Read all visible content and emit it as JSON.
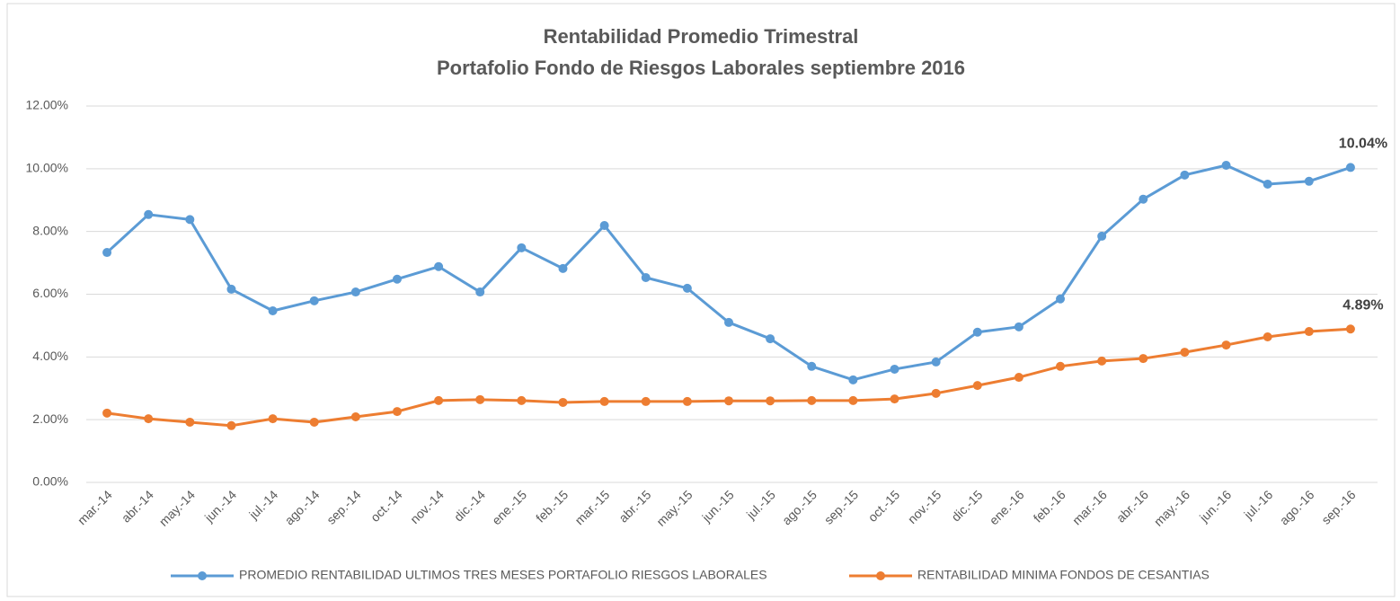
{
  "chart_data": {
    "type": "line",
    "title": "Rentabilidad Promedio Trimestral",
    "subtitle": "Portafolio Fondo de Riesgos Laborales  septiembre 2016",
    "categories": [
      "mar.-14",
      "abr.-14",
      "may.-14",
      "jun.-14",
      "jul.-14",
      "ago.-14",
      "sep.-14",
      "oct.-14",
      "nov.-14",
      "dic.-14",
      "ene.-15",
      "feb.-15",
      "mar.-15",
      "abr.-15",
      "may.-15",
      "jun.-15",
      "jul.-15",
      "ago.-15",
      "sep.-15",
      "oct.-15",
      "nov.-15",
      "dic.-15",
      "ene.-16",
      "feb.-16",
      "mar.-16",
      "abr.-16",
      "may.-16",
      "jun.-16",
      "jul.-16",
      "ago.-16",
      "sep.-16"
    ],
    "series": [
      {
        "name": "PROMEDIO RENTABILIDAD ULTIMOS TRES MESES PORTAFOLIO RIESGOS LABORALES",
        "color": "#5b9bd5",
        "values": [
          7.33,
          8.54,
          8.38,
          6.16,
          5.47,
          5.79,
          6.07,
          6.48,
          6.88,
          6.07,
          7.48,
          6.82,
          8.19,
          6.53,
          6.19,
          5.1,
          4.58,
          3.7,
          3.27,
          3.61,
          3.84,
          4.79,
          4.96,
          5.85,
          7.85,
          9.03,
          9.8,
          10.11,
          9.51,
          9.6,
          10.04
        ],
        "value_labels": [
          null,
          null,
          null,
          null,
          null,
          null,
          null,
          null,
          null,
          null,
          null,
          null,
          null,
          null,
          null,
          null,
          null,
          null,
          null,
          null,
          null,
          null,
          null,
          null,
          null,
          null,
          null,
          null,
          null,
          null,
          "10.04%"
        ]
      },
      {
        "name": "RENTABILIDAD MINIMA FONDOS DE CESANTIAS",
        "color": "#ed7d31",
        "values": [
          2.21,
          2.03,
          1.92,
          1.81,
          2.03,
          1.92,
          2.09,
          2.26,
          2.61,
          2.64,
          2.61,
          2.55,
          2.58,
          2.58,
          2.58,
          2.6,
          2.6,
          2.61,
          2.61,
          2.66,
          2.84,
          3.09,
          3.35,
          3.7,
          3.87,
          3.95,
          4.15,
          4.38,
          4.64,
          4.81,
          4.89
        ],
        "value_labels": [
          null,
          null,
          null,
          null,
          null,
          null,
          null,
          null,
          null,
          null,
          null,
          null,
          null,
          null,
          null,
          null,
          null,
          null,
          null,
          null,
          null,
          null,
          null,
          null,
          null,
          null,
          null,
          null,
          null,
          null,
          "4.89%"
        ]
      }
    ],
    "ylim": [
      0,
      12
    ],
    "yticks": [
      {
        "value": 0,
        "label": "0.00%"
      },
      {
        "value": 2,
        "label": "2.00%"
      },
      {
        "value": 4,
        "label": "4.00%"
      },
      {
        "value": 6,
        "label": "6.00%"
      },
      {
        "value": 8,
        "label": "8.00%"
      },
      {
        "value": 10,
        "label": "10.00%"
      },
      {
        "value": 12,
        "label": "12.00%"
      }
    ],
    "grid": true,
    "legend": "bottom"
  }
}
